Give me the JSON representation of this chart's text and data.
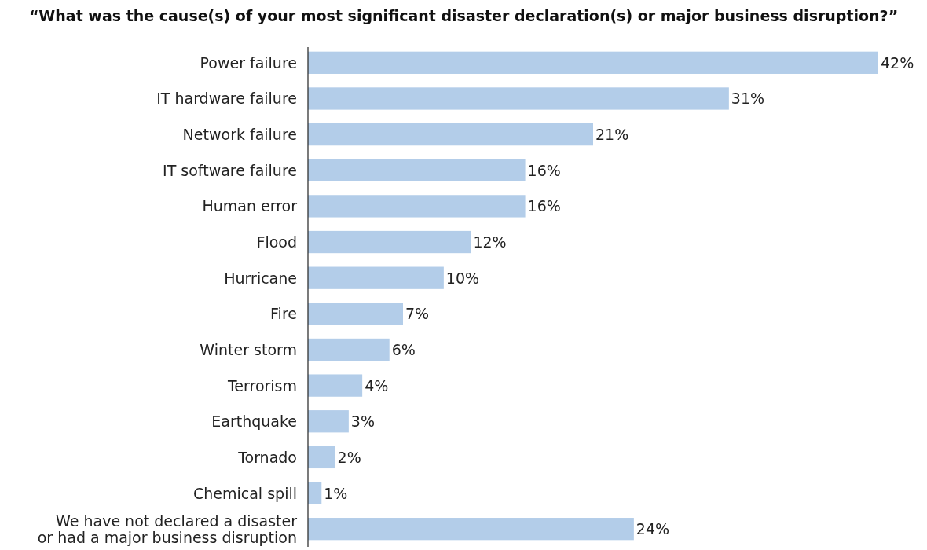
{
  "chart_data": {
    "type": "bar",
    "orientation": "horizontal",
    "title": "“What was the cause(s) of your most significant disaster declaration(s) or major business disruption?”",
    "categories": [
      "Power failure",
      "IT hardware failure",
      "Network failure",
      "IT software failure",
      "Human error",
      "Flood",
      "Hurricane",
      "Fire",
      "Winter storm",
      "Terrorism",
      "Earthquake",
      "Tornado",
      "Chemical spill",
      "We have not declared a disaster\nor had a major business disruption"
    ],
    "values": [
      42,
      31,
      21,
      16,
      16,
      12,
      10,
      7,
      6,
      4,
      3,
      2,
      1,
      24
    ],
    "value_labels": [
      "42%",
      "31%",
      "21%",
      "16%",
      "16%",
      "12%",
      "10%",
      "7%",
      "6%",
      "4%",
      "3%",
      "2%",
      "1%",
      "24%"
    ],
    "color": "#b3cde9"
  }
}
